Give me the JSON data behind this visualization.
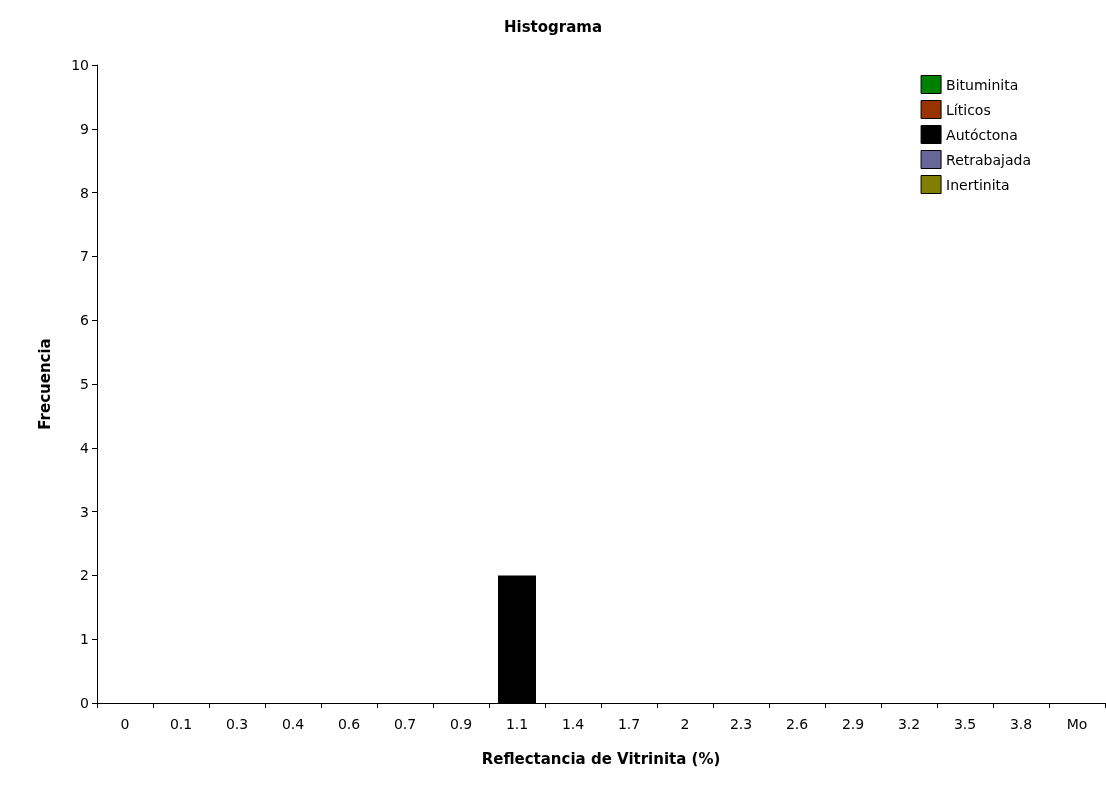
{
  "chart_data": {
    "type": "bar",
    "title": "Histograma",
    "xlabel": "Reflectancia de Vitrinita (%)",
    "ylabel": "Frecuencia",
    "categories": [
      "0",
      "0.1",
      "0.3",
      "0.4",
      "0.6",
      "0.7",
      "0.9",
      "1.1",
      "1.4",
      "1.7",
      "2",
      "2.3",
      "2.6",
      "2.9",
      "3.2",
      "3.5",
      "3.8",
      "Mo"
    ],
    "series": [
      {
        "name": "Bituminita",
        "color": "#008000",
        "values": [
          0,
          0,
          0,
          0,
          0,
          0,
          0,
          0,
          0,
          0,
          0,
          0,
          0,
          0,
          0,
          0,
          0,
          0
        ]
      },
      {
        "name": "Líticos",
        "color": "#993300",
        "values": [
          0,
          0,
          0,
          0,
          0,
          0,
          0,
          0,
          0,
          0,
          0,
          0,
          0,
          0,
          0,
          0,
          0,
          0
        ]
      },
      {
        "name": "Autóctona",
        "color": "#000000",
        "values": [
          0,
          0,
          0,
          0,
          0,
          0,
          0,
          2,
          0,
          0,
          0,
          0,
          0,
          0,
          0,
          0,
          0,
          0
        ]
      },
      {
        "name": "Retrabajada",
        "color": "#666699",
        "values": [
          0,
          0,
          0,
          0,
          0,
          0,
          0,
          0,
          0,
          0,
          0,
          0,
          0,
          0,
          0,
          0,
          0,
          0
        ]
      },
      {
        "name": "Inertinita",
        "color": "#808000",
        "values": [
          0,
          0,
          0,
          0,
          0,
          0,
          0,
          0,
          0,
          0,
          0,
          0,
          0,
          0,
          0,
          0,
          0,
          0
        ]
      }
    ],
    "ylim": [
      0,
      10
    ],
    "yticks": [
      0,
      1,
      2,
      3,
      4,
      5,
      6,
      7,
      8,
      9,
      10
    ],
    "grid": false,
    "legend": "top right"
  }
}
